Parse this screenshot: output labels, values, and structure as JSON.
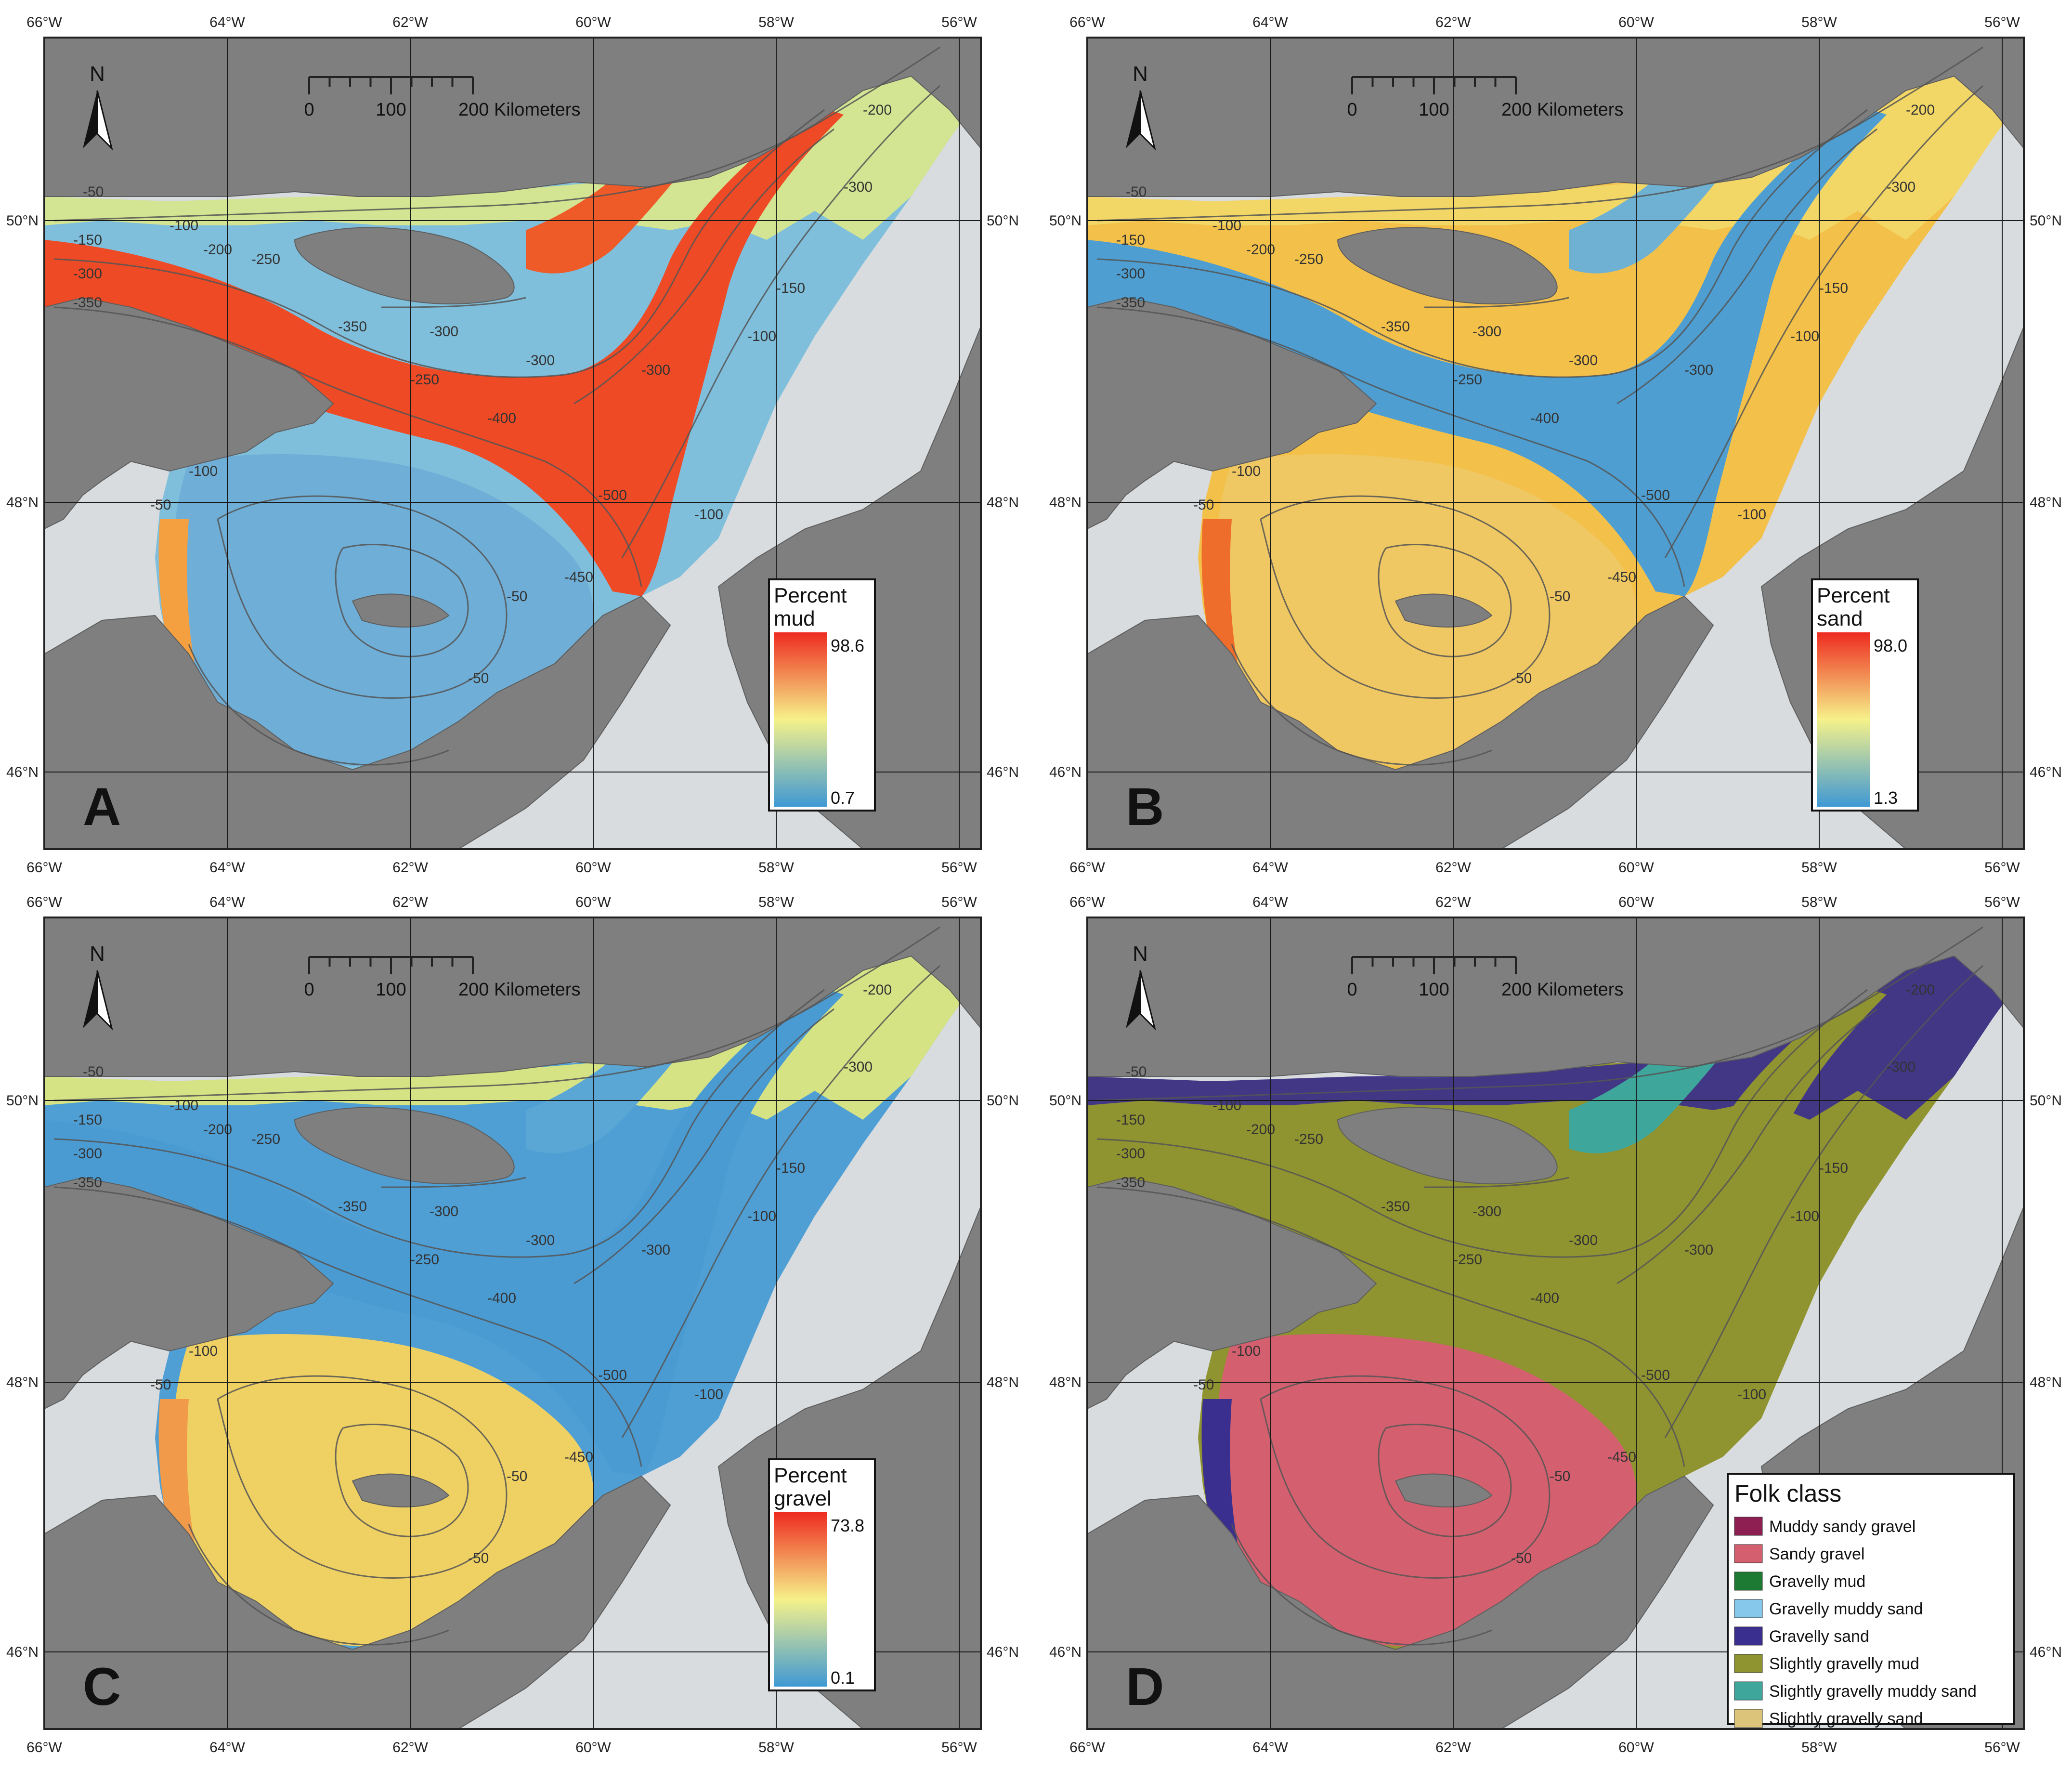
{
  "figure": {
    "lon_ticks": [
      "66°W",
      "64°W",
      "62°W",
      "60°W",
      "58°W",
      "56°W"
    ],
    "lat_ticks": [
      "50°N",
      "48°N",
      "46°N"
    ],
    "north_label": "N",
    "scalebar": {
      "ticks": [
        "0",
        "100",
        "200 Kilometers"
      ]
    },
    "colors": {
      "land": "#7f7f7f",
      "shelf": "#d8dcde",
      "frame": "#222222",
      "contour": "#555555",
      "grad_low": "#3f99d4",
      "grad_mid": "#f6f18a",
      "grad_high": "#ee2b20"
    },
    "contour_labels": [
      "-50",
      "-100",
      "-150",
      "-200",
      "-250",
      "-300",
      "-350",
      "-400",
      "-450",
      "-500"
    ]
  },
  "panels": [
    {
      "id": "A",
      "letter": "A",
      "legend_type": "gradient",
      "legend_title_1": "Percent",
      "legend_title_2": "mud",
      "legend_max": "98.6",
      "legend_min": "0.7",
      "fill_scheme": "mud"
    },
    {
      "id": "B",
      "letter": "B",
      "legend_type": "gradient",
      "legend_title_1": "Percent",
      "legend_title_2": "sand",
      "legend_max": "98.0",
      "legend_min": "1.3",
      "fill_scheme": "sand"
    },
    {
      "id": "C",
      "letter": "C",
      "legend_type": "gradient",
      "legend_title_1": "Percent",
      "legend_title_2": "gravel",
      "legend_max": "73.8",
      "legend_min": "0.1",
      "fill_scheme": "gravel"
    },
    {
      "id": "D",
      "letter": "D",
      "legend_type": "categorical",
      "legend_title": "Folk class",
      "fill_scheme": "folk",
      "classes": [
        {
          "label": "Muddy sandy gravel",
          "color": "#8e1f52"
        },
        {
          "label": "Sandy gravel",
          "color": "#d4606f"
        },
        {
          "label": "Gravelly mud",
          "color": "#1d7a33"
        },
        {
          "label": "Gravelly muddy sand",
          "color": "#86c8ec"
        },
        {
          "label": "Gravelly sand",
          "color": "#3a2e8e"
        },
        {
          "label": "Slightly gravelly mud",
          "color": "#8f9330"
        },
        {
          "label": "Slightly gravelly muddy sand",
          "color": "#3ea69a"
        },
        {
          "label": "Slightly gravelly sand",
          "color": "#dcc57a"
        }
      ]
    }
  ]
}
